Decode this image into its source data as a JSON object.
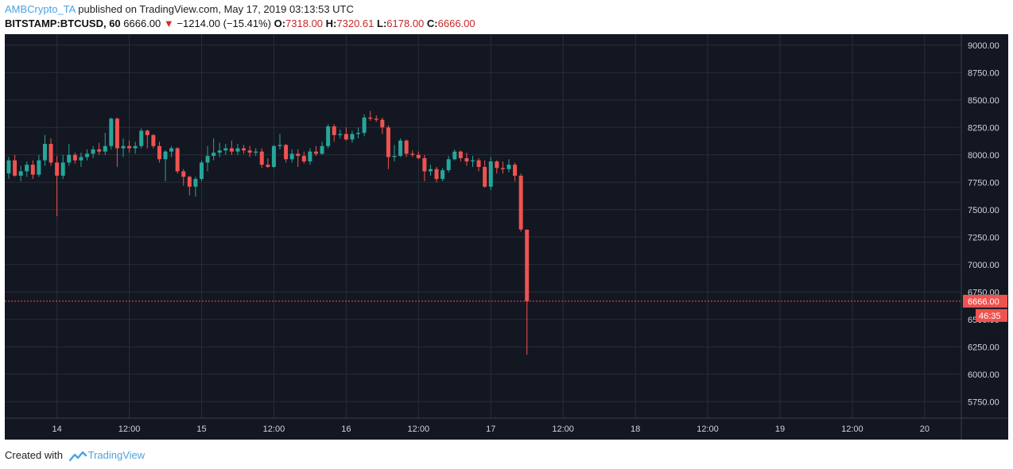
{
  "header": {
    "author": "AMBCrypto_TA",
    "published": "published on TradingView.com, May 17, 2019 03:13:53 UTC",
    "symbol": "BITSTAMP:BTCUSD, 60",
    "last": "6666.00",
    "change": "−1214.00 (−15.41%)",
    "o_label": "O:",
    "o_value": "7318.00",
    "h_label": "H:",
    "h_value": "7320.61",
    "l_label": "L:",
    "l_value": "6178.00",
    "c_label": "C:",
    "c_value": "6666.00"
  },
  "footer": {
    "created": "Created with",
    "brand": "TradingView"
  },
  "colors": {
    "background": "#131722",
    "grid": "#2a2e39",
    "up": "#26a69a",
    "down": "#ef5350",
    "axis_text": "#d1d4dc"
  },
  "chart_data": {
    "type": "candlestick",
    "ylim": [
      5600,
      9100
    ],
    "y_ticks": [
      9000,
      8750,
      8500,
      8250,
      8000,
      7750,
      7500,
      7250,
      7000,
      6750,
      6500,
      6250,
      6000,
      5750
    ],
    "y_tick_labels": [
      "9000.00",
      "8750.00",
      "8500.00",
      "8250.00",
      "8000.00",
      "7750.00",
      "7500.00",
      "7250.00",
      "7000.00",
      "6750.00",
      "6500.00",
      "6250.00",
      "6000.00",
      "5750.00"
    ],
    "x_ticks": [
      {
        "t": 12,
        "label": "14"
      },
      {
        "t": 24,
        "label": "12:00"
      },
      {
        "t": 36,
        "label": "15"
      },
      {
        "t": 48,
        "label": "12:00"
      },
      {
        "t": 60,
        "label": "16"
      },
      {
        "t": 72,
        "label": "12:00"
      },
      {
        "t": 84,
        "label": "17"
      },
      {
        "t": 96,
        "label": "12:00"
      },
      {
        "t": 108,
        "label": "18"
      },
      {
        "t": 120,
        "label": "12:00"
      },
      {
        "t": 132,
        "label": "19"
      },
      {
        "t": 144,
        "label": "12:00"
      },
      {
        "t": 156,
        "label": "20"
      }
    ],
    "xlim": [
      4,
      158
    ],
    "last_price": 6666.0,
    "last_price_label": "6666.00",
    "countdown_label": "46:35",
    "candles": [
      {
        "t": 4,
        "o": 7830,
        "h": 7980,
        "l": 7780,
        "c": 7950
      },
      {
        "t": 5,
        "o": 7950,
        "h": 8000,
        "l": 7800,
        "c": 7810
      },
      {
        "t": 6,
        "o": 7810,
        "h": 7900,
        "l": 7760,
        "c": 7850
      },
      {
        "t": 7,
        "o": 7850,
        "h": 7940,
        "l": 7800,
        "c": 7910
      },
      {
        "t": 8,
        "o": 7910,
        "h": 7950,
        "l": 7780,
        "c": 7820
      },
      {
        "t": 9,
        "o": 7820,
        "h": 8000,
        "l": 7800,
        "c": 7950
      },
      {
        "t": 10,
        "o": 7950,
        "h": 8180,
        "l": 7900,
        "c": 8100
      },
      {
        "t": 11,
        "o": 8100,
        "h": 8150,
        "l": 7900,
        "c": 7930
      },
      {
        "t": 12,
        "o": 7930,
        "h": 7990,
        "l": 7440,
        "c": 7810
      },
      {
        "t": 13,
        "o": 7810,
        "h": 8000,
        "l": 7780,
        "c": 7930
      },
      {
        "t": 14,
        "o": 7930,
        "h": 8100,
        "l": 7900,
        "c": 8000
      },
      {
        "t": 15,
        "o": 8000,
        "h": 8020,
        "l": 7920,
        "c": 7950
      },
      {
        "t": 16,
        "o": 7950,
        "h": 8020,
        "l": 7890,
        "c": 7980
      },
      {
        "t": 17,
        "o": 7980,
        "h": 8050,
        "l": 7950,
        "c": 8010
      },
      {
        "t": 18,
        "o": 8010,
        "h": 8080,
        "l": 7970,
        "c": 8050
      },
      {
        "t": 19,
        "o": 8050,
        "h": 8110,
        "l": 8000,
        "c": 8030
      },
      {
        "t": 20,
        "o": 8030,
        "h": 8200,
        "l": 8000,
        "c": 8080
      },
      {
        "t": 21,
        "o": 8080,
        "h": 8340,
        "l": 8050,
        "c": 8330
      },
      {
        "t": 22,
        "o": 8330,
        "h": 8340,
        "l": 7890,
        "c": 8060
      },
      {
        "t": 23,
        "o": 8060,
        "h": 8150,
        "l": 7980,
        "c": 8080
      },
      {
        "t": 24,
        "o": 8080,
        "h": 8130,
        "l": 8020,
        "c": 8060
      },
      {
        "t": 25,
        "o": 8060,
        "h": 8120,
        "l": 8010,
        "c": 8080
      },
      {
        "t": 26,
        "o": 8080,
        "h": 8240,
        "l": 8060,
        "c": 8220
      },
      {
        "t": 27,
        "o": 8220,
        "h": 8230,
        "l": 8060,
        "c": 8180
      },
      {
        "t": 28,
        "o": 8180,
        "h": 8190,
        "l": 8060,
        "c": 8080
      },
      {
        "t": 29,
        "o": 8080,
        "h": 8120,
        "l": 7930,
        "c": 7960
      },
      {
        "t": 30,
        "o": 7960,
        "h": 8040,
        "l": 7760,
        "c": 8030
      },
      {
        "t": 31,
        "o": 8030,
        "h": 8080,
        "l": 7980,
        "c": 8060
      },
      {
        "t": 32,
        "o": 8060,
        "h": 8070,
        "l": 7830,
        "c": 7850
      },
      {
        "t": 33,
        "o": 7850,
        "h": 7870,
        "l": 7720,
        "c": 7800
      },
      {
        "t": 34,
        "o": 7800,
        "h": 7810,
        "l": 7630,
        "c": 7710
      },
      {
        "t": 35,
        "o": 7710,
        "h": 7800,
        "l": 7620,
        "c": 7780
      },
      {
        "t": 36,
        "o": 7780,
        "h": 7950,
        "l": 7760,
        "c": 7930
      },
      {
        "t": 37,
        "o": 7930,
        "h": 8080,
        "l": 7850,
        "c": 7990
      },
      {
        "t": 38,
        "o": 7990,
        "h": 8150,
        "l": 7950,
        "c": 8020
      },
      {
        "t": 39,
        "o": 8020,
        "h": 8110,
        "l": 7980,
        "c": 8040
      },
      {
        "t": 40,
        "o": 8040,
        "h": 8100,
        "l": 8000,
        "c": 8060
      },
      {
        "t": 41,
        "o": 8060,
        "h": 8130,
        "l": 8000,
        "c": 8030
      },
      {
        "t": 42,
        "o": 8030,
        "h": 8100,
        "l": 8000,
        "c": 8060
      },
      {
        "t": 43,
        "o": 8060,
        "h": 8090,
        "l": 8010,
        "c": 8040
      },
      {
        "t": 44,
        "o": 8040,
        "h": 8080,
        "l": 7980,
        "c": 8020
      },
      {
        "t": 45,
        "o": 8020,
        "h": 8060,
        "l": 7990,
        "c": 8030
      },
      {
        "t": 46,
        "o": 8030,
        "h": 8060,
        "l": 7880,
        "c": 7910
      },
      {
        "t": 47,
        "o": 7910,
        "h": 7970,
        "l": 7880,
        "c": 7890
      },
      {
        "t": 48,
        "o": 7890,
        "h": 8090,
        "l": 7880,
        "c": 8080
      },
      {
        "t": 49,
        "o": 8080,
        "h": 8190,
        "l": 8050,
        "c": 8090
      },
      {
        "t": 50,
        "o": 8090,
        "h": 8100,
        "l": 7930,
        "c": 7960
      },
      {
        "t": 51,
        "o": 7960,
        "h": 8050,
        "l": 7930,
        "c": 8010
      },
      {
        "t": 52,
        "o": 8010,
        "h": 8050,
        "l": 7890,
        "c": 7990
      },
      {
        "t": 53,
        "o": 7990,
        "h": 8030,
        "l": 7920,
        "c": 7940
      },
      {
        "t": 54,
        "o": 7940,
        "h": 8060,
        "l": 7910,
        "c": 8030
      },
      {
        "t": 55,
        "o": 8030,
        "h": 8080,
        "l": 7990,
        "c": 8010
      },
      {
        "t": 56,
        "o": 8010,
        "h": 8120,
        "l": 8000,
        "c": 8080
      },
      {
        "t": 57,
        "o": 8080,
        "h": 8280,
        "l": 8060,
        "c": 8260
      },
      {
        "t": 58,
        "o": 8260,
        "h": 8280,
        "l": 8120,
        "c": 8180
      },
      {
        "t": 59,
        "o": 8180,
        "h": 8230,
        "l": 8150,
        "c": 8190
      },
      {
        "t": 60,
        "o": 8190,
        "h": 8250,
        "l": 8130,
        "c": 8140
      },
      {
        "t": 61,
        "o": 8140,
        "h": 8220,
        "l": 8110,
        "c": 8190
      },
      {
        "t": 62,
        "o": 8190,
        "h": 8250,
        "l": 8150,
        "c": 8200
      },
      {
        "t": 63,
        "o": 8200,
        "h": 8370,
        "l": 8170,
        "c": 8340
      },
      {
        "t": 64,
        "o": 8340,
        "h": 8400,
        "l": 8310,
        "c": 8330
      },
      {
        "t": 65,
        "o": 8330,
        "h": 8360,
        "l": 8300,
        "c": 8320
      },
      {
        "t": 66,
        "o": 8320,
        "h": 8340,
        "l": 8190,
        "c": 8250
      },
      {
        "t": 67,
        "o": 8250,
        "h": 8270,
        "l": 7870,
        "c": 7980
      },
      {
        "t": 68,
        "o": 7980,
        "h": 8090,
        "l": 7940,
        "c": 7990
      },
      {
        "t": 69,
        "o": 7990,
        "h": 8150,
        "l": 7980,
        "c": 8130
      },
      {
        "t": 70,
        "o": 8130,
        "h": 8140,
        "l": 7980,
        "c": 8010
      },
      {
        "t": 71,
        "o": 8010,
        "h": 8040,
        "l": 7980,
        "c": 8000
      },
      {
        "t": 72,
        "o": 8000,
        "h": 8030,
        "l": 7960,
        "c": 7970
      },
      {
        "t": 73,
        "o": 7970,
        "h": 8000,
        "l": 7760,
        "c": 7850
      },
      {
        "t": 74,
        "o": 7850,
        "h": 7910,
        "l": 7810,
        "c": 7870
      },
      {
        "t": 75,
        "o": 7870,
        "h": 7890,
        "l": 7750,
        "c": 7780
      },
      {
        "t": 76,
        "o": 7780,
        "h": 7880,
        "l": 7760,
        "c": 7860
      },
      {
        "t": 77,
        "o": 7860,
        "h": 7990,
        "l": 7840,
        "c": 7960
      },
      {
        "t": 78,
        "o": 7960,
        "h": 8050,
        "l": 7950,
        "c": 8030
      },
      {
        "t": 79,
        "o": 8030,
        "h": 8040,
        "l": 7940,
        "c": 7970
      },
      {
        "t": 80,
        "o": 7970,
        "h": 8020,
        "l": 7900,
        "c": 7940
      },
      {
        "t": 81,
        "o": 7940,
        "h": 7990,
        "l": 7890,
        "c": 7950
      },
      {
        "t": 82,
        "o": 7950,
        "h": 7970,
        "l": 7850,
        "c": 7890
      },
      {
        "t": 83,
        "o": 7890,
        "h": 7950,
        "l": 7700,
        "c": 7710
      },
      {
        "t": 84,
        "o": 7710,
        "h": 7980,
        "l": 7680,
        "c": 7940
      },
      {
        "t": 85,
        "o": 7940,
        "h": 7950,
        "l": 7830,
        "c": 7880
      },
      {
        "t": 86,
        "o": 7880,
        "h": 7940,
        "l": 7830,
        "c": 7870
      },
      {
        "t": 87,
        "o": 7870,
        "h": 7960,
        "l": 7840,
        "c": 7910
      },
      {
        "t": 88,
        "o": 7910,
        "h": 7930,
        "l": 7760,
        "c": 7810
      },
      {
        "t": 89,
        "o": 7810,
        "h": 7830,
        "l": 7300,
        "c": 7320
      },
      {
        "t": 90,
        "o": 7318,
        "h": 7320.61,
        "l": 6178,
        "c": 6666
      }
    ]
  }
}
